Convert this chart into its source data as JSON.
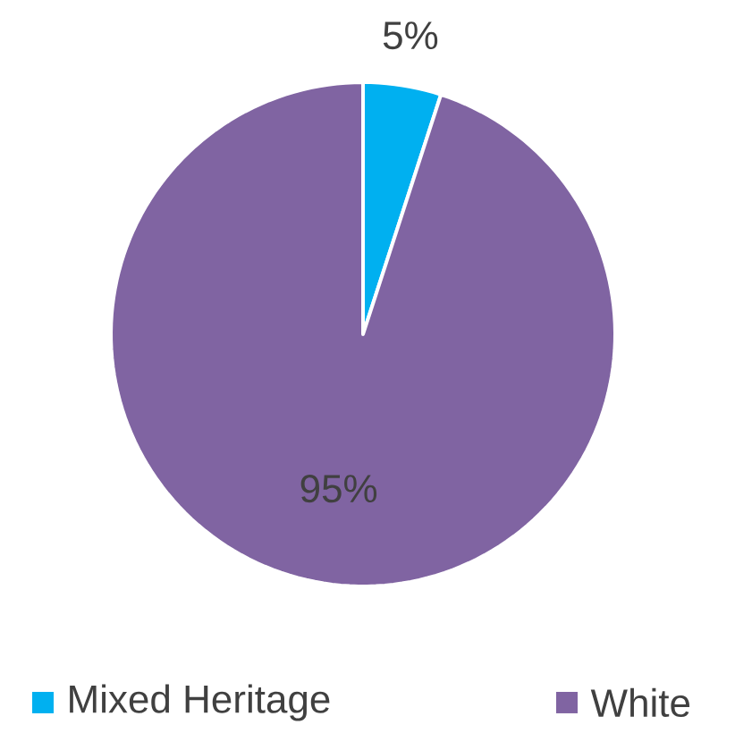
{
  "chart_data": {
    "type": "pie",
    "categories": [
      "Mixed Heritage",
      "White"
    ],
    "values": [
      5,
      95
    ],
    "colors": [
      "#00b0f0",
      "#8064a2"
    ],
    "value_labels": [
      "5%",
      "95%"
    ],
    "legend": "bottom"
  }
}
